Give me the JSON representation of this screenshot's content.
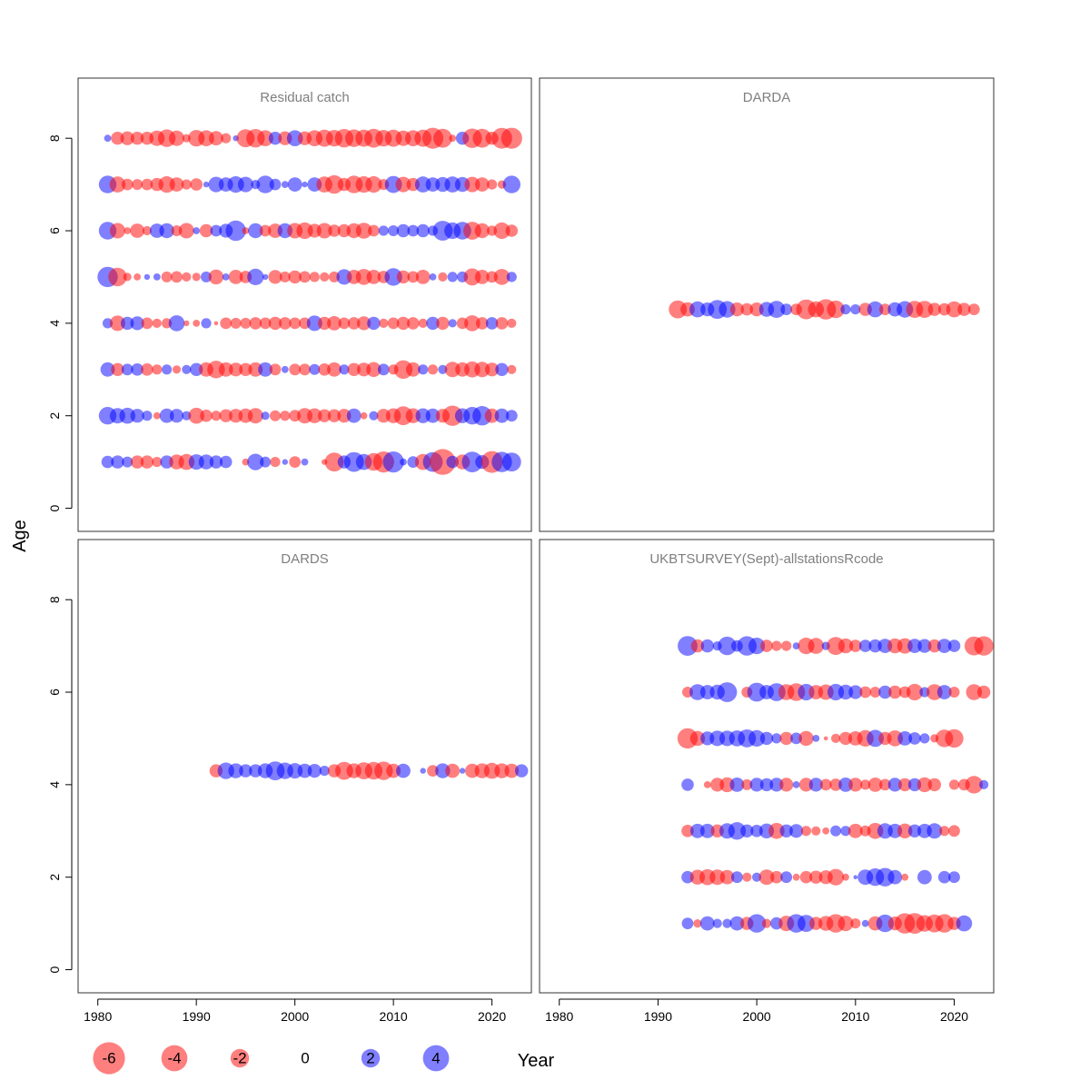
{
  "chart_data": {
    "type": "scatter",
    "subtype": "bubble residual plot, 2x2 panels",
    "xlabel": "Year",
    "ylabel": "Age",
    "xlim": [
      1978,
      2024
    ],
    "ylim": [
      -0.5,
      9.3
    ],
    "x_ticks": [
      "1980",
      "1990",
      "2000",
      "2010",
      "2020"
    ],
    "y_ticks": [
      "0",
      "2",
      "4",
      "6",
      "8"
    ],
    "colors": {
      "negative": "#ff0000",
      "positive": "#0000ff",
      "alpha": 0.5
    },
    "legend": {
      "position": "bottom",
      "values": [
        -6,
        -4,
        -2,
        0,
        2,
        4
      ],
      "labels": [
        "-6",
        "-4",
        "-2",
        "0",
        "2",
        "4"
      ]
    },
    "panels": [
      {
        "title": "Residual catch",
        "series": [
          {
            "age": 8,
            "first_year": 1981,
            "residuals": [
              0.3,
              -1.0,
              -1.1,
              -1.0,
              -1.0,
              -1.4,
              -1.8,
              -1.4,
              -0.4,
              -1.6,
              -1.5,
              -1.2,
              -0.6,
              0.2,
              -1.9,
              -2.0,
              -1.5,
              1.0,
              -1.1,
              1.5,
              -1.1,
              -1.5,
              -1.7,
              -1.6,
              -2.0,
              -1.8,
              -1.7,
              -2.1,
              -1.6,
              -1.7,
              -1.4,
              -1.5,
              -1.7,
              -2.6,
              -2.1,
              -0.3,
              1.0,
              -2.2,
              -2.1,
              -1.0,
              -2.5,
              -2.6
            ]
          },
          {
            "age": 7,
            "first_year": 1981,
            "residuals": [
              1.8,
              -1.5,
              -0.8,
              -0.7,
              -0.8,
              -1.0,
              -1.6,
              -1.2,
              -0.6,
              -0.9,
              0.2,
              1.4,
              1.2,
              1.6,
              1.4,
              0.5,
              1.8,
              0.8,
              0.3,
              1.2,
              0.2,
              1.2,
              -1.5,
              -2.0,
              -1.0,
              -1.8,
              -1.6,
              -1.6,
              -0.7,
              1.7,
              -1.4,
              -1.0,
              1.5,
              1.2,
              1.3,
              1.5,
              1.3,
              -1.4,
              -1.2,
              -0.6,
              -0.4,
              1.8
            ]
          },
          {
            "age": 6,
            "first_year": 1981,
            "residuals": [
              1.8,
              -1.4,
              -0.3,
              -1.2,
              -0.5,
              1.2,
              1.3,
              -0.7,
              -1.4,
              0.3,
              -1.0,
              0.8,
              1.1,
              2.4,
              -0.3,
              1.3,
              -0.8,
              -1.2,
              1.3,
              -1.4,
              -1.6,
              -1.1,
              -1.4,
              -0.9,
              -1.0,
              -1.3,
              -1.5,
              -0.8,
              0.6,
              0.7,
              1.0,
              0.8,
              1.0,
              0.6,
              2.3,
              1.6,
              1.8,
              -1.9,
              -1.3,
              -0.6,
              -1.6,
              -0.9
            ]
          },
          {
            "age": 5,
            "first_year": 1981,
            "residuals": [
              2.4,
              -2.0,
              -0.4,
              -0.3,
              0.2,
              0.3,
              -0.7,
              -0.8,
              -0.5,
              -0.4,
              0.7,
              -1.3,
              0.3,
              -1.2,
              -0.9,
              1.6,
              0.2,
              -1.1,
              -0.7,
              -1.0,
              -0.8,
              -0.6,
              -0.5,
              -0.7,
              1.4,
              -1.2,
              -1.5,
              -1.2,
              -0.9,
              1.8,
              -1.0,
              -0.8,
              -1.2,
              0.3,
              -0.5,
              0.6,
              0.7,
              -1.7,
              -1.2,
              -0.8,
              -1.5,
              0.6
            ]
          },
          {
            "age": 4,
            "first_year": 1981,
            "residuals": [
              0.6,
              -1.4,
              1.0,
              1.1,
              -0.8,
              -0.5,
              -0.6,
              1.5,
              -0.2,
              -0.3,
              0.6,
              -0.1,
              -0.8,
              -0.7,
              -0.7,
              -0.9,
              -0.8,
              -1.0,
              -0.9,
              -0.8,
              -0.8,
              1.4,
              -1.0,
              -1.2,
              -0.8,
              -0.9,
              -1.1,
              1.0,
              -0.5,
              -0.8,
              -1.0,
              -0.9,
              -0.5,
              1.0,
              -1.0,
              0.4,
              -0.8,
              -1.5,
              -0.9,
              0.9,
              -0.9,
              -0.5
            ]
          },
          {
            "age": 3,
            "first_year": 1981,
            "residuals": [
              1.2,
              -1.0,
              0.8,
              0.9,
              -0.9,
              -0.6,
              0.6,
              -0.4,
              0.5,
              1.0,
              -1.2,
              -1.8,
              -1.2,
              -1.1,
              -1.0,
              -1.2,
              1.2,
              -0.8,
              0.3,
              -0.8,
              -0.8,
              0.7,
              -0.9,
              -1.2,
              0.6,
              -1.0,
              -1.1,
              -1.3,
              0.8,
              -0.6,
              -2.0,
              -1.2,
              0.6,
              -0.6,
              0.5,
              -1.4,
              -1.2,
              -1.5,
              -1.4,
              -1.1,
              1.0,
              -0.5
            ]
          },
          {
            "age": 2,
            "first_year": 1981,
            "residuals": [
              1.8,
              1.4,
              1.5,
              1.1,
              0.6,
              -0.3,
              1.2,
              1.1,
              0.5,
              -1.5,
              -0.9,
              -0.6,
              -1.0,
              -1.1,
              -1.2,
              -1.4,
              0.4,
              -0.7,
              -0.6,
              -0.8,
              -1.4,
              -1.3,
              -1.0,
              -1.0,
              -1.1,
              1.2,
              -0.3,
              0.5,
              -1.1,
              -1.3,
              -2.1,
              -1.3,
              1.3,
              1.2,
              -1.1,
              -2.4,
              1.3,
              1.8,
              2.2,
              -1.2,
              1.2,
              0.8
            ]
          },
          {
            "age": 1,
            "first_year": 1981,
            "residuals": [
              0.9,
              1.0,
              0.7,
              -1.0,
              -1.0,
              -0.6,
              1.0,
              -1.3,
              -1.5,
              1.4,
              1.3,
              1.0,
              0.9,
              0.0,
              -0.3,
              1.6,
              0.7,
              -0.6,
              0.2,
              -0.8,
              0.3,
              0.0,
              -0.2,
              -2.1,
              1.0,
              2.3,
              1.5,
              -1.8,
              -2.6,
              2.6,
              0.3,
              0.8,
              -1.5,
              2.3,
              -3.9,
              0.9,
              -1.3,
              2.5,
              1.1,
              -2.8,
              2.4,
              2.1
            ]
          }
        ]
      },
      {
        "title": "DARDA",
        "series": [
          {
            "age": 4.3,
            "first_year": 1992,
            "residuals": [
              -1.9,
              -1.2,
              1.5,
              1.1,
              2.1,
              1.6,
              -1.1,
              -0.9,
              -1.1,
              1.3,
              1.7,
              0.8,
              -0.8,
              -2.3,
              -1.5,
              -2.4,
              -1.8,
              0.6,
              0.6,
              -1.0,
              1.5,
              -0.8,
              1.2,
              1.6,
              -1.7,
              -1.7,
              -1.0,
              -0.9,
              -1.5,
              -1.0,
              -0.8
            ]
          }
        ]
      },
      {
        "title": "DARDS",
        "series": [
          {
            "age": 4.3,
            "first_year": 1992,
            "residuals": [
              -1.0,
              1.6,
              1.3,
              1.0,
              1.0,
              1.3,
              2.1,
              1.6,
              1.4,
              1.2,
              1.1,
              0.6,
              -1.0,
              -1.9,
              -1.3,
              -1.7,
              -1.8,
              -2.0,
              -1.2,
              1.2,
              0.0,
              0.2,
              -0.8,
              1.3,
              -1.2,
              0.2,
              -1.2,
              -1.3,
              -1.5,
              -1.3,
              -1.2,
              1.0
            ]
          }
        ]
      },
      {
        "title": "UKBTSURVEY(Sept)-allstationsRcode",
        "series": [
          {
            "age": 7,
            "first_year": 1993,
            "residuals": [
              2.3,
              -1.0,
              1.0,
              0.5,
              2.0,
              0.8,
              2.2,
              1.6,
              -0.9,
              -0.6,
              -0.6,
              0.3,
              -1.6,
              -1.5,
              0.4,
              -1.9,
              -1.3,
              -0.9,
              0.9,
              1.0,
              1.2,
              -1.3,
              -1.4,
              1.2,
              1.1,
              -1.0,
              1.2,
              0.9,
              0.0,
              -2.1,
              -2.2
            ]
          },
          {
            "age": 6,
            "first_year": 1993,
            "residuals": [
              -0.7,
              1.5,
              1.2,
              1.3,
              2.3,
              0.0,
              -0.7,
              2.1,
              1.2,
              1.9,
              -1.5,
              -1.8,
              1.6,
              -1.2,
              -1.4,
              1.6,
              1.3,
              1.1,
              -0.8,
              -0.7,
              1.0,
              -1.0,
              -0.8,
              -1.6,
              0.6,
              -1.5,
              1.2,
              -0.7,
              0.0,
              -1.5,
              -1.0
            ]
          },
          {
            "age": 5,
            "first_year": 1993,
            "residuals": [
              -2.4,
              -1.3,
              1.1,
              1.4,
              1.4,
              1.5,
              1.9,
              1.6,
              1.0,
              0.6,
              -1.0,
              0.8,
              -1.3,
              0.3,
              -0.1,
              -0.5,
              -1.0,
              -1.2,
              -1.6,
              1.7,
              -1.0,
              -1.5,
              1.2,
              0.9,
              0.6,
              -0.4,
              -1.8,
              -2.0
            ]
          },
          {
            "age": 4,
            "first_year": 1993,
            "residuals": [
              0.9,
              0.0,
              -0.3,
              -1.1,
              -1.3,
              1.2,
              -0.7,
              1.1,
              1.0,
              1.1,
              -1.1,
              0.3,
              -1.1,
              1.1,
              -0.8,
              -0.9,
              1.2,
              -1.1,
              -0.6,
              -1.2,
              -0.8,
              1.1,
              -1.0,
              1.0,
              -1.3,
              -1.0,
              0.0,
              -0.6,
              -0.8,
              -1.8,
              0.5
            ]
          },
          {
            "age": 3,
            "first_year": 1993,
            "residuals": [
              -0.9,
              1.2,
              1.2,
              -1.0,
              1.4,
              1.8,
              1.0,
              0.9,
              1.3,
              -1.5,
              1.0,
              1.1,
              -0.6,
              -0.5,
              -0.3,
              0.7,
              0.6,
              -1.2,
              -0.7,
              -1.5,
              1.4,
              1.2,
              -1.3,
              1.0,
              1.2,
              1.4,
              -0.6,
              -0.8
            ]
          },
          {
            "age": 2,
            "first_year": 1993,
            "residuals": [
              0.9,
              -1.3,
              -1.5,
              -1.4,
              -1.2,
              0.8,
              -0.5,
              0.5,
              -1.4,
              -0.9,
              0.8,
              -0.3,
              -0.9,
              -1.0,
              -1.1,
              -1.6,
              -0.3,
              0.1,
              1.4,
              1.8,
              2.0,
              1.2,
              -0.3,
              0.0,
              1.2,
              0.0,
              0.9,
              0.8
            ]
          },
          {
            "age": 1,
            "first_year": 1993,
            "residuals": [
              0.8,
              -0.4,
              1.2,
              0.5,
              0.5,
              1.2,
              -1.0,
              2.0,
              -0.5,
              0.9,
              -1.4,
              2.0,
              1.7,
              -1.0,
              -1.3,
              -2.0,
              -1.4,
              -0.6,
              0.3,
              -1.2,
              1.8,
              -1.1,
              -2.4,
              -2.5,
              -1.6,
              -1.9,
              -2.0,
              -1.0,
              1.5
            ]
          }
        ]
      }
    ]
  }
}
